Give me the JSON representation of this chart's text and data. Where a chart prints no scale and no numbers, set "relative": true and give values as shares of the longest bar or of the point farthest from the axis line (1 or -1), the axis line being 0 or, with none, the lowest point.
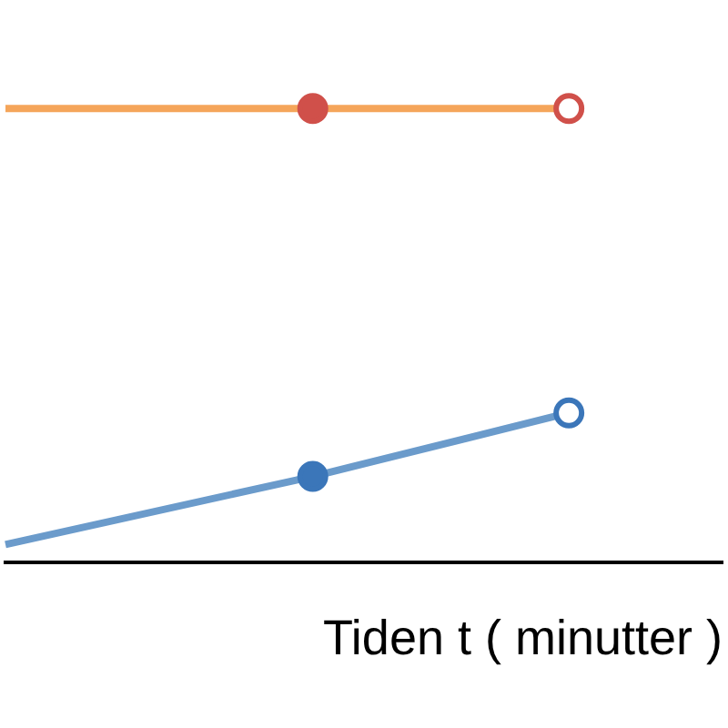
{
  "chart_data": {
    "type": "line",
    "xlabel": "Tiden t ( minutter )",
    "relative": true,
    "legend": false,
    "grid": false,
    "marker": "circle",
    "categories": [
      null,
      null,
      null,
      null,
      null,
      null,
      null,
      null,
      null,
      null,
      null,
      null,
      null,
      null,
      null
    ],
    "series": [
      {
        "color": "#f5a55a",
        "colors": [
          null,
          null,
          null,
          null,
          null,
          null,
          "#d0504a",
          null,
          null,
          null,
          null,
          "#d0504a",
          null,
          null,
          null
        ],
        "values": [
          1,
          null,
          null,
          null,
          null,
          null,
          1,
          null,
          null,
          null,
          null,
          1,
          null,
          null,
          null
        ]
      },
      {
        "color": "#6b9bcb",
        "colors": [
          null,
          null,
          null,
          null,
          null,
          null,
          "#3b76b9",
          null,
          null,
          null,
          null,
          "#3b76b9",
          null,
          null,
          null
        ],
        "values": [
          0.04,
          null,
          null,
          null,
          null,
          null,
          0.19,
          null,
          null,
          null,
          null,
          0.33,
          null,
          null,
          null
        ]
      }
    ]
  }
}
